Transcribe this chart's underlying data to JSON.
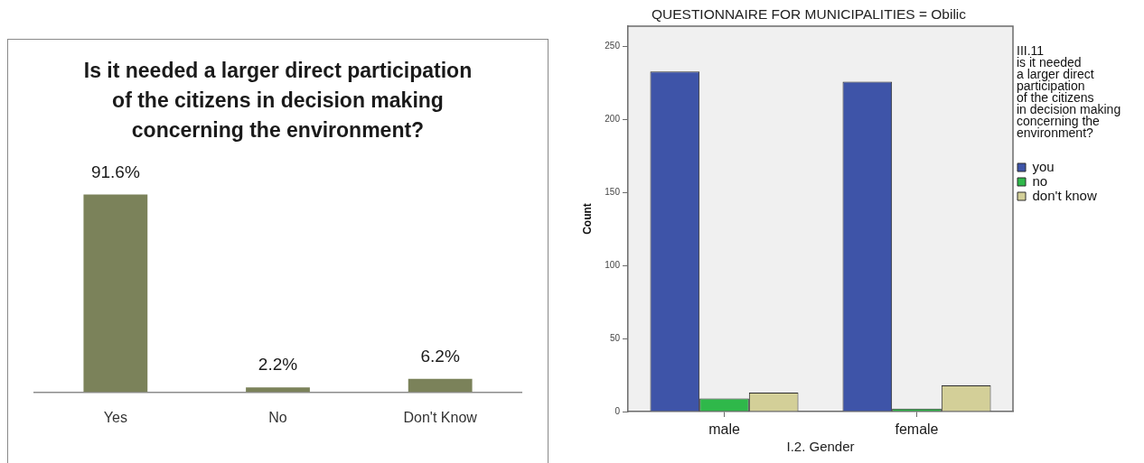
{
  "chart_data": [
    {
      "type": "bar",
      "title": "Is it needed a larger direct participation of the citizens in decision making concerning the environment?",
      "categories": [
        "Yes",
        "No",
        "Don't Know"
      ],
      "values": [
        91.6,
        2.2,
        6.2
      ],
      "color": "#7b825a",
      "value_labels": [
        "91.6%",
        "2.2%",
        "6.2%"
      ],
      "tick_labels": "x"
    },
    {
      "type": "bar",
      "title": "QUESTIONNAIRE FOR MUNICIPALITIES = Obilic",
      "xlabel": "I.2. Gender",
      "ylabel": "Count",
      "legend_title": "III.11\nis it needed\na larger direct\nparticipation\nof the citizens\nin decision making\nconcerning the\nenvironment?",
      "categories": [
        "male",
        "female"
      ],
      "series": [
        {
          "name": "you",
          "color": "#3e54a8",
          "values": [
            233,
            226
          ]
        },
        {
          "name": "no",
          "color": "#2fb84a",
          "values": [
            9,
            2
          ]
        },
        {
          "name": "don't know",
          "color": "#d3cf98",
          "values": [
            13,
            18
          ]
        }
      ],
      "ylim": [
        0,
        264
      ],
      "yticks": [
        0,
        50,
        100,
        150,
        200,
        250
      ],
      "legend": "right"
    }
  ]
}
